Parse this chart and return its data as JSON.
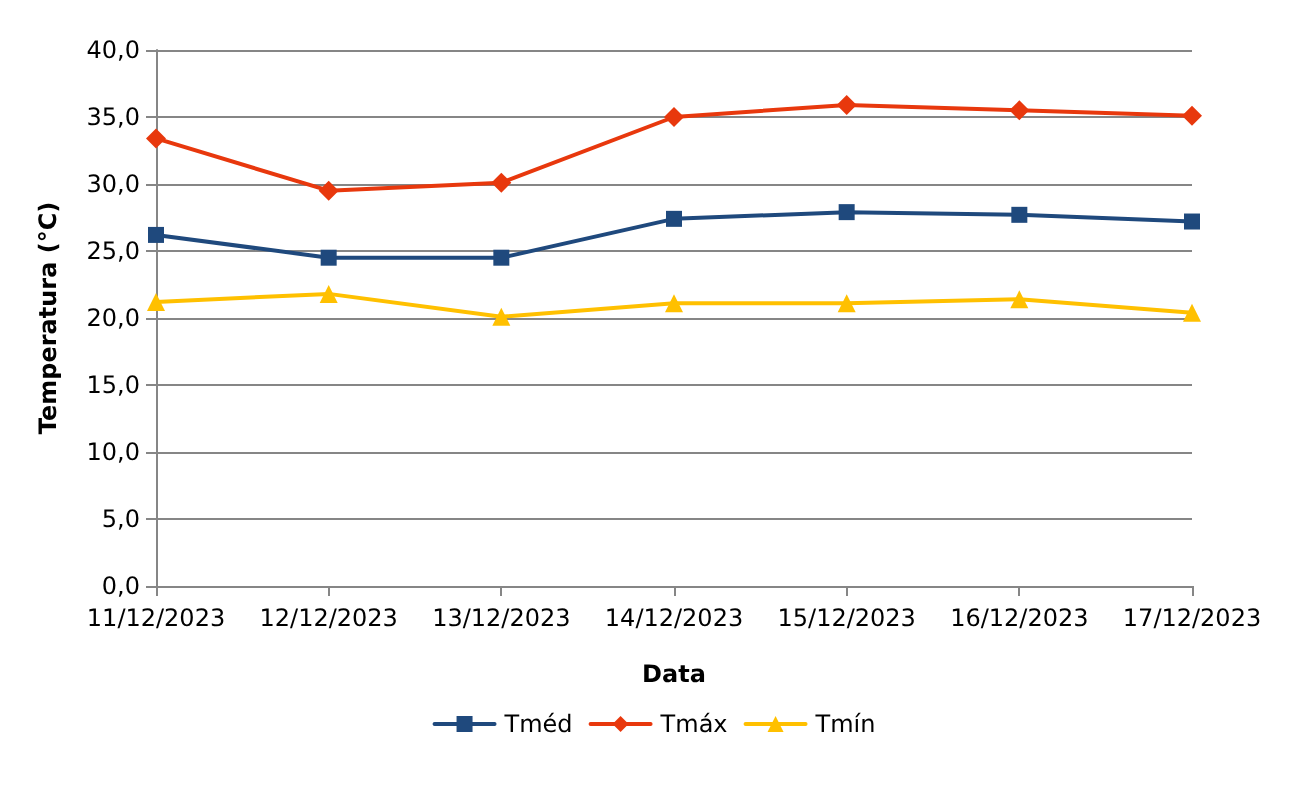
{
  "chart_data": {
    "type": "line",
    "xlabel": "Data",
    "ylabel": "Temperatura (°C)",
    "categories": [
      "11/12/2023",
      "12/12/2023",
      "13/12/2023",
      "14/12/2023",
      "15/12/2023",
      "16/12/2023",
      "17/12/2023"
    ],
    "series": [
      {
        "name": "Tméd",
        "color": "#1f497d",
        "marker": "square",
        "values": [
          26.2,
          24.5,
          24.5,
          27.4,
          27.9,
          27.7,
          27.2
        ]
      },
      {
        "name": "Tmáx",
        "color": "#e8380d",
        "marker": "diamond",
        "values": [
          33.4,
          29.5,
          30.1,
          35.0,
          35.9,
          35.5,
          35.1
        ]
      },
      {
        "name": "Tmín",
        "color": "#ffc000",
        "marker": "triangle",
        "values": [
          21.2,
          21.8,
          20.1,
          21.1,
          21.1,
          21.4,
          20.4
        ]
      }
    ],
    "ylim": [
      0,
      40
    ],
    "yticks": [
      {
        "value": 0,
        "label": "0,0"
      },
      {
        "value": 5,
        "label": "5,0"
      },
      {
        "value": 10,
        "label": "10,0"
      },
      {
        "value": 15,
        "label": "15,0"
      },
      {
        "value": 20,
        "label": "20,0"
      },
      {
        "value": 25,
        "label": "25,0"
      },
      {
        "value": 30,
        "label": "30,0"
      },
      {
        "value": 35,
        "label": "35,0"
      },
      {
        "value": 40,
        "label": "40,0"
      }
    ],
    "grid": "y",
    "legend": "bottom",
    "line_style": "solid"
  }
}
